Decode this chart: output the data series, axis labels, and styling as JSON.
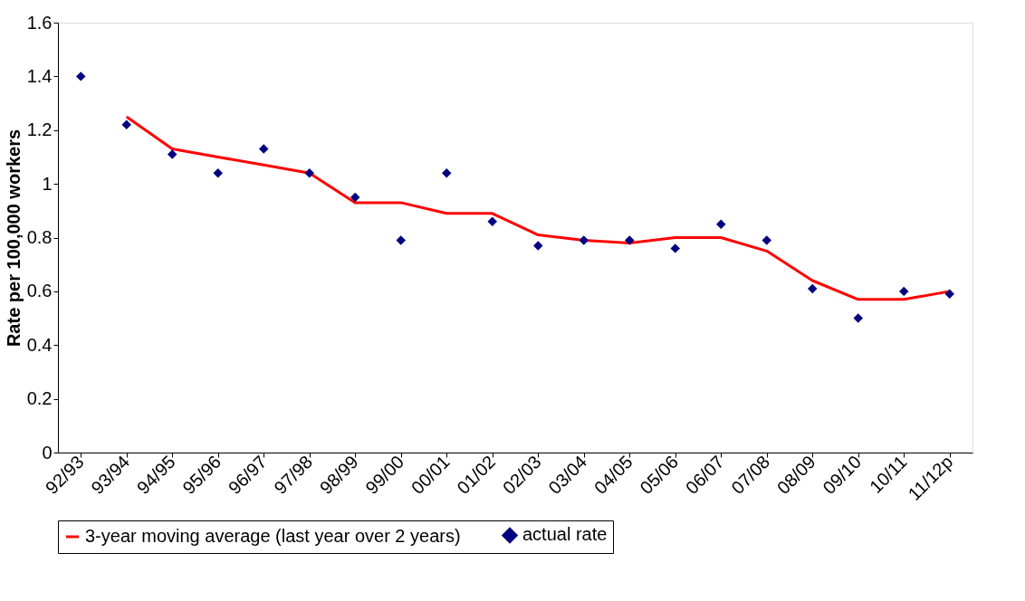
{
  "chart_data": {
    "type": "line",
    "ylabel": "Rate per 100,000 workers",
    "categories": [
      "92/93",
      "93/94",
      "94/95",
      "95/96",
      "96/97",
      "97/98",
      "98/99",
      "99/00",
      "00/01",
      "01/02",
      "02/03",
      "03/04",
      "04/05",
      "05/06",
      "06/07",
      "07/08",
      "08/09",
      "09/10",
      "10/11",
      "11/12p"
    ],
    "series": [
      {
        "name": "3-year moving average (last year over 2 years)",
        "color": "#ff0000",
        "marker": "none",
        "values": [
          null,
          1.25,
          1.13,
          1.1,
          1.07,
          1.04,
          0.93,
          0.93,
          0.89,
          0.89,
          0.81,
          0.79,
          0.78,
          0.8,
          0.8,
          0.75,
          0.64,
          0.57,
          0.57,
          0.6
        ]
      },
      {
        "name": "actual rate",
        "type": "scatter",
        "color": "#000080",
        "marker": "diamond",
        "values": [
          1.4,
          1.22,
          1.11,
          1.04,
          1.13,
          1.04,
          0.95,
          0.79,
          1.04,
          0.86,
          0.77,
          0.79,
          0.79,
          0.76,
          0.85,
          0.79,
          0.61,
          0.5,
          0.6,
          0.59
        ]
      }
    ],
    "ylim": [
      0,
      1.6
    ],
    "yticks": [
      0,
      0.2,
      0.4,
      0.6,
      0.8,
      1,
      1.2,
      1.4,
      1.6
    ],
    "grid": false,
    "legend": "bottom"
  }
}
